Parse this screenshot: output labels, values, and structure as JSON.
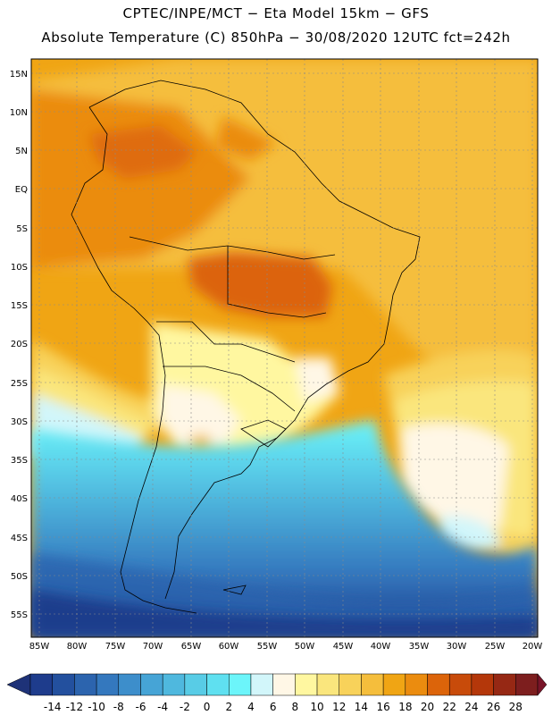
{
  "header": {
    "line1": "CPTEC/INPE/MCT −  Eta Model 15km − GFS",
    "line2": "Absolute Temperature (C) 850hPa − 30/08/2020 12UTC fct=242h"
  },
  "axes": {
    "lat_labels": [
      "15N",
      "10N",
      "5N",
      "EQ",
      "5S",
      "10S",
      "15S",
      "20S",
      "25S",
      "30S",
      "35S",
      "40S",
      "45S",
      "50S",
      "55S"
    ],
    "lon_labels": [
      "85W",
      "80W",
      "75W",
      "70W",
      "65W",
      "60W",
      "55W",
      "50W",
      "45W",
      "40W",
      "35W",
      "30W",
      "25W",
      "20W"
    ]
  },
  "colorbar": {
    "labels": [
      "-14",
      "-12",
      "-10",
      "-8",
      "-6",
      "-4",
      "-2",
      "0",
      "2",
      "4",
      "6",
      "8",
      "10",
      "12",
      "14",
      "16",
      "18",
      "20",
      "22",
      "24",
      "26",
      "28"
    ],
    "colors": [
      "#1e3c8c",
      "#23509e",
      "#2c64ae",
      "#3478be",
      "#3d8ecb",
      "#46a4d6",
      "#4fb8de",
      "#58cce6",
      "#5fe0f0",
      "#6cf5fa",
      "#d2f6fa",
      "#fff7e6",
      "#fff7a0",
      "#fae67d",
      "#f8d25a",
      "#f5be3c",
      "#f0a514",
      "#eb8c0f",
      "#dc640a",
      "#c84b0a",
      "#b4370a",
      "#962814",
      "#7d1e1e"
    ],
    "end_low": "#1e3278",
    "end_high": "#781428"
  }
}
